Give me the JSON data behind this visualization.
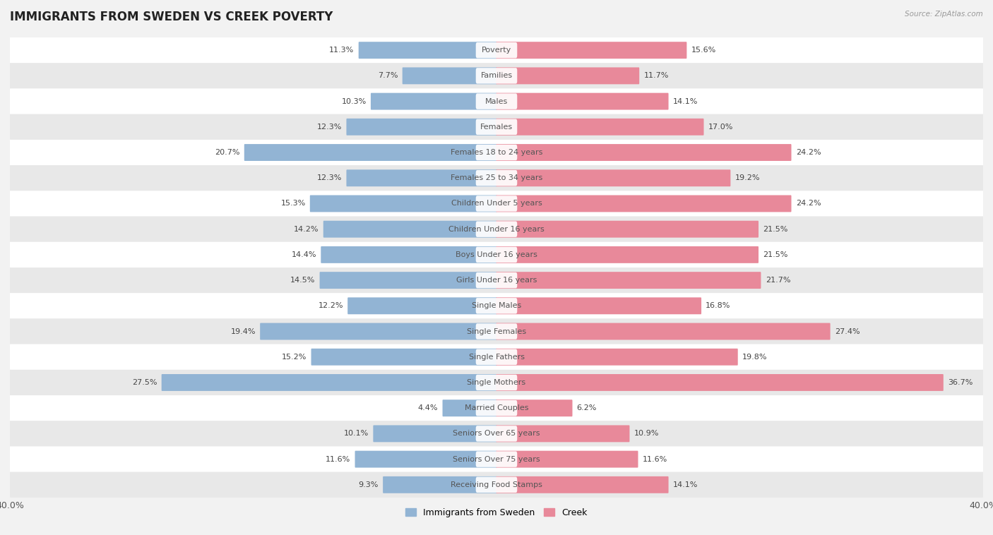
{
  "title": "IMMIGRANTS FROM SWEDEN VS CREEK POVERTY",
  "source_text": "Source: ZipAtlas.com",
  "categories": [
    "Poverty",
    "Families",
    "Males",
    "Females",
    "Females 18 to 24 years",
    "Females 25 to 34 years",
    "Children Under 5 years",
    "Children Under 16 years",
    "Boys Under 16 years",
    "Girls Under 16 years",
    "Single Males",
    "Single Females",
    "Single Fathers",
    "Single Mothers",
    "Married Couples",
    "Seniors Over 65 years",
    "Seniors Over 75 years",
    "Receiving Food Stamps"
  ],
  "sweden_values": [
    11.3,
    7.7,
    10.3,
    12.3,
    20.7,
    12.3,
    15.3,
    14.2,
    14.4,
    14.5,
    12.2,
    19.4,
    15.2,
    27.5,
    4.4,
    10.1,
    11.6,
    9.3
  ],
  "creek_values": [
    15.6,
    11.7,
    14.1,
    17.0,
    24.2,
    19.2,
    24.2,
    21.5,
    21.5,
    21.7,
    16.8,
    27.4,
    19.8,
    36.7,
    6.2,
    10.9,
    11.6,
    14.1
  ],
  "sweden_color": "#92b4d4",
  "creek_color": "#e8899a",
  "sweden_label": "Immigrants from Sweden",
  "creek_label": "Creek",
  "axis_max": 40.0,
  "background_color": "#f2f2f2",
  "row_color_even": "#ffffff",
  "row_color_odd": "#e8e8e8",
  "bar_height": 0.58,
  "title_fontsize": 12,
  "label_fontsize": 8,
  "value_fontsize": 8,
  "xlim": 40.0
}
